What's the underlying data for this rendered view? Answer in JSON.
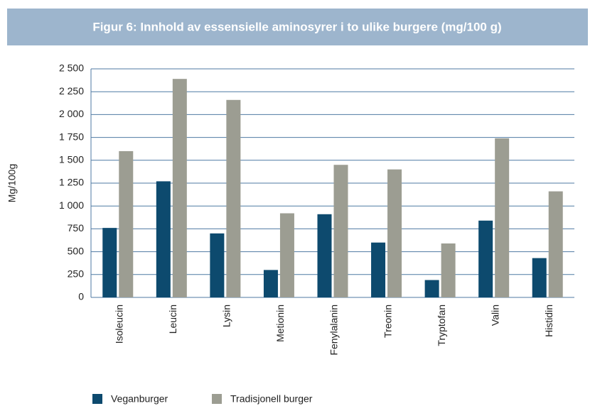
{
  "chart_data": {
    "type": "bar",
    "title": "Figur 6: Innhold av essensielle aminosyrer i to ulike burgere (mg/100 g)",
    "y_label": "Mg/100g",
    "categories": [
      "Isoleucin",
      "Leucin",
      "Lysin",
      "Metionin",
      "Fenylalanin",
      "Treonin",
      "Tryptofan",
      "Valin",
      "Histidin"
    ],
    "series": [
      {
        "name": "Veganburger",
        "color": "#0d4a6e",
        "values": [
          760,
          1270,
          700,
          300,
          910,
          600,
          190,
          840,
          430
        ]
      },
      {
        "name": "Tradisjonell burger",
        "color": "#9c9d92",
        "values": [
          1600,
          2390,
          2160,
          920,
          1450,
          1400,
          590,
          1740,
          1160
        ]
      }
    ],
    "ylim": [
      0,
      2500
    ],
    "yticks": [
      0,
      250,
      500,
      750,
      {
        "value": 1000,
        "label": "1 000"
      },
      {
        "value": 1250,
        "label": "1 250"
      },
      {
        "value": 1500,
        "label": "1 500"
      },
      {
        "value": 1750,
        "label": "1 750"
      },
      {
        "value": 2000,
        "label": "2 000"
      },
      {
        "value": 2250,
        "label": "2 250"
      },
      {
        "value": 2500,
        "label": "2 500"
      }
    ],
    "grid": true,
    "legend": "bottom"
  }
}
